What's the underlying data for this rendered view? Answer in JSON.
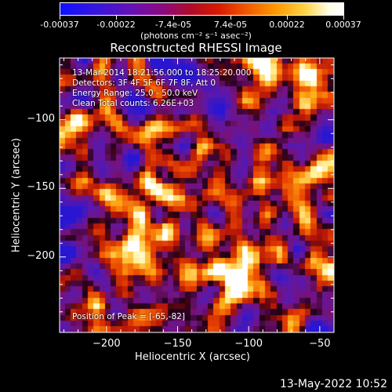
{
  "colorbar": {
    "tick_labels": [
      "-0.00037",
      "-0.00022",
      "-7.4e-05",
      "7.4e-05",
      "0.00022",
      "0.00037"
    ],
    "units_label": "(photons cm⁻² s⁻¹ asec⁻²)",
    "range": [
      -0.00037,
      0.00037
    ],
    "colors": [
      "#1c14e6",
      "#7a0a9c",
      "#d21508",
      "#ff8a00",
      "#ffffff"
    ]
  },
  "chart_data": {
    "type": "heatmap",
    "title": "Reconstructed RHESSI Image",
    "xlabel": "Heliocentric X (arcsec)",
    "ylabel": "Heliocentric Y (arcsec)",
    "xlim": [
      -233,
      -40
    ],
    "ylim": [
      -255,
      -55
    ],
    "x_ticks": [
      -200,
      -150,
      -100,
      -50
    ],
    "y_ticks": [
      -100,
      -150,
      -200
    ],
    "x_tick_labels": [
      "−200",
      "−150",
      "−100",
      "−50"
    ],
    "y_tick_labels": [
      "−100",
      "−150",
      "−200"
    ],
    "annotations": [
      "13-Mar-2014 18:21:56.000 to 18:25:20.000",
      "Detectors: 3F 4F 5F 6F 7F 8F, Att 0",
      "Energy Range: 25.0 - 50.0 keV",
      "Clean     Total counts: 6.26E+03"
    ],
    "peak_label": "Position of Peak = [-65,-82]",
    "peak": [
      -65,
      -82
    ]
  },
  "footer": {
    "timestamp": "13-May-2022 10:52"
  }
}
